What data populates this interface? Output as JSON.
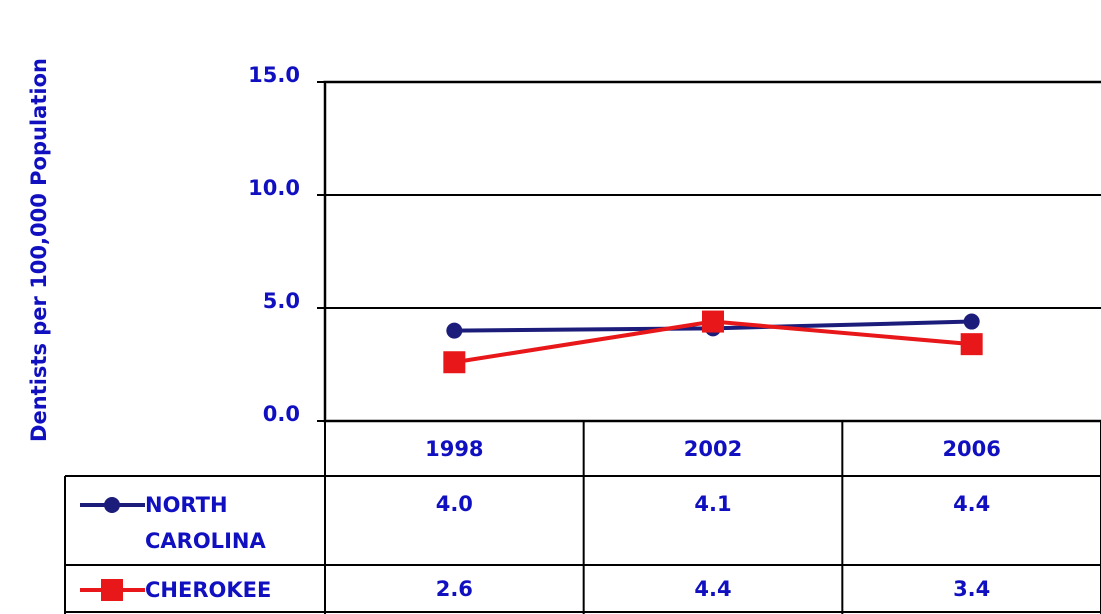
{
  "chart_data": {
    "type": "line",
    "y_label": "Dentists per 100,000 Population",
    "categories": [
      "1998",
      "2002",
      "2006"
    ],
    "series": [
      {
        "name": "NORTH CAROLINA",
        "color": "#1c1c7a",
        "marker": "circle",
        "values": [
          4.0,
          4.1,
          4.4
        ],
        "value_labels": [
          "4.0",
          "4.1",
          "4.4"
        ]
      },
      {
        "name": "CHEROKEE",
        "color": "#e8181a",
        "marker": "square",
        "values": [
          2.6,
          4.4,
          3.4
        ],
        "value_labels": [
          "2.6",
          "4.4",
          "3.4"
        ]
      }
    ],
    "ylim": [
      0,
      15
    ],
    "yticks": [
      {
        "value": 0,
        "label": "0.0"
      },
      {
        "value": 5,
        "label": "5.0"
      },
      {
        "value": 10,
        "label": "10.0"
      },
      {
        "value": 15,
        "label": "15.0"
      }
    ],
    "grid": true
  }
}
